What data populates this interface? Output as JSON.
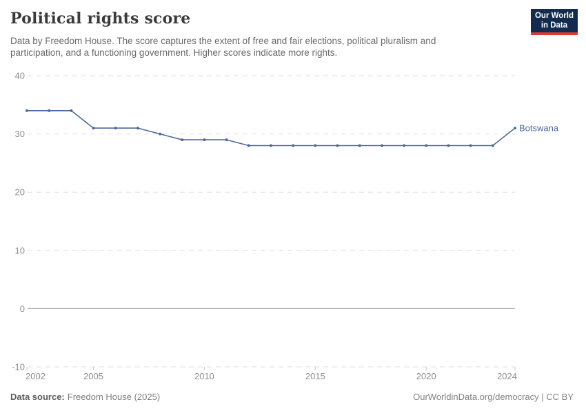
{
  "header": {
    "title": "Political rights score",
    "subtitle": "Data by Freedom House. The score captures the extent of free and fair elections, political pluralism and participation, and a functioning government. Higher scores indicate more rights.",
    "logo": {
      "line1": "Our World",
      "line2": "in Data"
    }
  },
  "chart_data": {
    "type": "line",
    "title": "Political rights score",
    "x": [
      2002,
      2003,
      2004,
      2005,
      2006,
      2007,
      2008,
      2009,
      2010,
      2011,
      2012,
      2013,
      2014,
      2015,
      2016,
      2017,
      2018,
      2019,
      2020,
      2021,
      2022,
      2023,
      2024
    ],
    "series": [
      {
        "name": "Botswana",
        "color": "#4c6a9c",
        "values": [
          34,
          34,
          34,
          31,
          31,
          31,
          30,
          29,
          29,
          29,
          28,
          28,
          28,
          28,
          28,
          28,
          28,
          28,
          28,
          28,
          28,
          28,
          31
        ]
      }
    ],
    "x_ticks": [
      2002,
      2005,
      2010,
      2015,
      2020,
      2024
    ],
    "y_ticks": [
      -10,
      0,
      10,
      20,
      30,
      40
    ],
    "xlim": [
      2002,
      2024
    ],
    "ylim": [
      -10,
      40
    ],
    "grid": "horizontal-dashed",
    "legend_position": "end-of-line-label"
  },
  "footer": {
    "source_label": "Data source:",
    "source_value": "Freedom House (2025)",
    "link": "OurWorldinData.org/democracy | CC BY"
  },
  "colors": {
    "series_blue": "#4c6a9c",
    "logo_bg": "#122b4e",
    "logo_accent": "#e0392f",
    "grid_dashed": "#dedede",
    "zero_line": "#a3a3a3",
    "axis_tick_mark": "#c9c9c9",
    "axis_text": "#8d8d8d",
    "title_text": "#3b3b3b",
    "subtitle_text": "#696969"
  }
}
